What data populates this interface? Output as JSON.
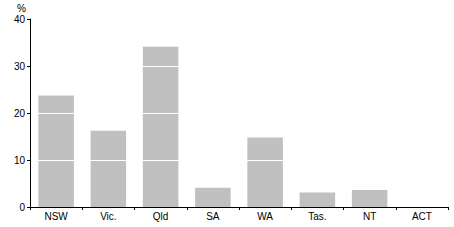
{
  "chart_data": {
    "type": "bar",
    "ylabel": "%",
    "categories": [
      "NSW",
      "Vic.",
      "Qld",
      "SA",
      "WA",
      "Tas.",
      "NT",
      "ACT"
    ],
    "values": [
      23.7,
      16.2,
      34.1,
      4.1,
      14.8,
      3.1,
      3.6,
      0
    ],
    "color": "#c0c0c0",
    "ylim": [
      0,
      40
    ],
    "yticks": [
      0,
      10,
      20,
      30,
      40
    ],
    "grid": true
  }
}
